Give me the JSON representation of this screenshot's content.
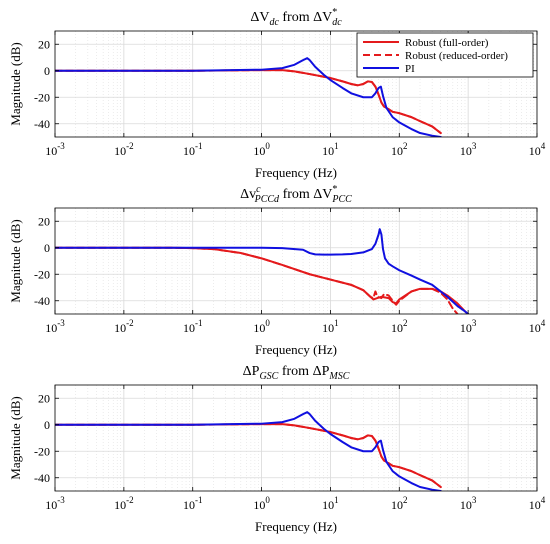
{
  "colors": {
    "robust_full": "#e41a1c",
    "robust_reduced": "#e41a1c",
    "pi": "#1010e0",
    "grid": "#d9d9d9",
    "axis": "#000000"
  },
  "chart_data": [
    {
      "type": "line",
      "title_parts": {
        "a": "ΔV",
        "a_sub": "dc",
        "mid": " from ",
        "b": "ΔV",
        "b_sub": "dc",
        "b_sup": "*"
      },
      "xlabel": "Frequency (Hz)",
      "ylabel": "Magnitude (dB)",
      "xscale": "log",
      "xlim": [
        0.001,
        10000
      ],
      "ylim": [
        -50,
        30
      ],
      "xticks": [
        0.001,
        0.01,
        0.1,
        1,
        10,
        100,
        1000,
        10000
      ],
      "xtick_labels": [
        {
          "base": "10",
          "exp": "-3"
        },
        {
          "base": "10",
          "exp": "-2"
        },
        {
          "base": "10",
          "exp": "-1"
        },
        {
          "base": "10",
          "exp": "0"
        },
        {
          "base": "10",
          "exp": "1"
        },
        {
          "base": "10",
          "exp": "2"
        },
        {
          "base": "10",
          "exp": "3"
        },
        {
          "base": "10",
          "exp": "4"
        }
      ],
      "yticks": [
        -40,
        -20,
        0,
        20
      ],
      "ytick_labels": [
        "-40",
        "-20",
        "0",
        "20"
      ],
      "grid": true,
      "legend": {
        "placement": "top-right",
        "entries": [
          "Robust (full-order)",
          "Robust (reduced-order)",
          "PI"
        ]
      },
      "series": [
        {
          "name": "Robust (full-order)",
          "style": "solid",
          "x": [
            0.001,
            0.1,
            1,
            2,
            3,
            5,
            8,
            10,
            15,
            20,
            25,
            30,
            35,
            40,
            45,
            50,
            55,
            60,
            70,
            80,
            100,
            150,
            200,
            300,
            400
          ],
          "y": [
            0,
            0,
            0.5,
            0.5,
            -0.5,
            -2.5,
            -4.5,
            -5.5,
            -8,
            -10,
            -11,
            -10,
            -8,
            -8.5,
            -12,
            -18,
            -24,
            -27,
            -29,
            -31,
            -32,
            -35,
            -38,
            -42,
            -47
          ]
        },
        {
          "name": "Robust (reduced-order)",
          "style": "dashed",
          "x": [
            0.001,
            0.1,
            1,
            2,
            3,
            5,
            8,
            10,
            15,
            20,
            25,
            30,
            35,
            40,
            45,
            50,
            55,
            60,
            70,
            80,
            100,
            150,
            200,
            300,
            400
          ],
          "y": [
            0,
            0,
            0.5,
            0.5,
            -0.5,
            -2.5,
            -4.5,
            -5.5,
            -8,
            -10,
            -11,
            -10,
            -8,
            -8.5,
            -12,
            -18,
            -24,
            -27,
            -29,
            -31,
            -32,
            -35,
            -38,
            -42,
            -47
          ]
        },
        {
          "name": "PI",
          "style": "solid",
          "x": [
            0.001,
            0.1,
            1,
            2,
            3,
            4,
            4.6,
            5,
            6,
            8,
            10,
            15,
            20,
            30,
            40,
            45,
            50,
            54,
            58,
            65,
            80,
            100,
            150,
            200,
            300,
            400
          ],
          "y": [
            0,
            0,
            0.8,
            2,
            4.5,
            8,
            9.5,
            8,
            3,
            -3,
            -7,
            -13,
            -17,
            -20,
            -20,
            -17,
            -13,
            -12,
            -19,
            -28,
            -35,
            -39,
            -44,
            -47,
            -49,
            -50
          ]
        }
      ]
    },
    {
      "type": "line",
      "title_parts": {
        "a": "Δv",
        "a_sub": "PCCd",
        "a_sup": "c",
        "mid": " from ",
        "b": "ΔV",
        "b_sub": "PCC",
        "b_sup": "*"
      },
      "xlabel": "Frequency (Hz)",
      "ylabel": "Magnitude (dB)",
      "xscale": "log",
      "xlim": [
        0.001,
        10000
      ],
      "ylim": [
        -50,
        30
      ],
      "xticks": [
        0.001,
        0.01,
        0.1,
        1,
        10,
        100,
        1000,
        10000
      ],
      "xtick_labels": [
        {
          "base": "10",
          "exp": "-3"
        },
        {
          "base": "10",
          "exp": "-2"
        },
        {
          "base": "10",
          "exp": "-1"
        },
        {
          "base": "10",
          "exp": "0"
        },
        {
          "base": "10",
          "exp": "1"
        },
        {
          "base": "10",
          "exp": "2"
        },
        {
          "base": "10",
          "exp": "3"
        },
        {
          "base": "10",
          "exp": "4"
        }
      ],
      "yticks": [
        -40,
        -20,
        0,
        20
      ],
      "ytick_labels": [
        "-40",
        "-20",
        "0",
        "20"
      ],
      "grid": true,
      "series": [
        {
          "name": "Robust (full-order)",
          "style": "solid",
          "x": [
            0.001,
            0.05,
            0.1,
            0.2,
            0.5,
            1,
            2,
            5,
            10,
            20,
            30,
            38,
            42,
            48,
            55,
            70,
            80,
            90,
            100,
            150,
            200,
            300,
            400,
            500,
            700,
            900,
            1000
          ],
          "y": [
            0,
            0,
            -0.3,
            -1,
            -4,
            -8,
            -13,
            -20,
            -24,
            -28,
            -32,
            -37,
            -39,
            -38,
            -37,
            -38,
            -41,
            -42,
            -39,
            -33,
            -31,
            -31,
            -33,
            -36,
            -42,
            -48,
            -50
          ]
        },
        {
          "name": "Robust (reduced-order)",
          "style": "dashed",
          "x": [
            0.001,
            0.05,
            0.1,
            0.2,
            0.5,
            1,
            2,
            5,
            10,
            20,
            30,
            38,
            42,
            45,
            48,
            55,
            60,
            70,
            80,
            90,
            100,
            150,
            200,
            300,
            400,
            500,
            600,
            700
          ],
          "y": [
            0,
            0,
            -0.3,
            -1,
            -4,
            -8,
            -13,
            -20,
            -24,
            -28,
            -32,
            -37,
            -38,
            -33,
            -37,
            -38,
            -35,
            -36,
            -40,
            -43,
            -40,
            -33,
            -31,
            -31,
            -34,
            -39,
            -46,
            -50
          ]
        },
        {
          "name": "PI",
          "style": "solid",
          "x": [
            0.001,
            0.5,
            1,
            2,
            4,
            5,
            6,
            8,
            10,
            15,
            20,
            30,
            40,
            45,
            50,
            52,
            55,
            58,
            62,
            70,
            80,
            100,
            150,
            200,
            300,
            400,
            500,
            700,
            900,
            1000
          ],
          "y": [
            0,
            0,
            0,
            -0.3,
            -1.5,
            -4,
            -5,
            -5.2,
            -5.2,
            -5,
            -4.7,
            -3.5,
            -1,
            3,
            10,
            14,
            10,
            -1,
            -8,
            -12,
            -14,
            -17,
            -21,
            -24,
            -28,
            -33,
            -37,
            -44,
            -48,
            -50
          ]
        }
      ]
    },
    {
      "type": "line",
      "title_parts": {
        "a": "ΔP",
        "a_sub": "GSC",
        "mid": " from ",
        "b": "ΔP",
        "b_sub": "MSC"
      },
      "xlabel": "Frequency (Hz)",
      "ylabel": "Magnitude (dB)",
      "xscale": "log",
      "xlim": [
        0.001,
        10000
      ],
      "ylim": [
        -50,
        30
      ],
      "xticks": [
        0.001,
        0.01,
        0.1,
        1,
        10,
        100,
        1000,
        10000
      ],
      "xtick_labels": [
        {
          "base": "10",
          "exp": "-3"
        },
        {
          "base": "10",
          "exp": "-2"
        },
        {
          "base": "10",
          "exp": "-1"
        },
        {
          "base": "10",
          "exp": "0"
        },
        {
          "base": "10",
          "exp": "1"
        },
        {
          "base": "10",
          "exp": "2"
        },
        {
          "base": "10",
          "exp": "3"
        },
        {
          "base": "10",
          "exp": "4"
        }
      ],
      "yticks": [
        -40,
        -20,
        0,
        20
      ],
      "ytick_labels": [
        "-40",
        "-20",
        "0",
        "20"
      ],
      "grid": true,
      "series": [
        {
          "name": "Robust (full-order)",
          "style": "solid",
          "x": [
            0.001,
            0.1,
            1,
            2,
            3,
            5,
            8,
            10,
            15,
            20,
            25,
            30,
            35,
            40,
            45,
            50,
            55,
            60,
            70,
            80,
            100,
            150,
            200,
            300,
            400
          ],
          "y": [
            0,
            0,
            0.5,
            0.5,
            -0.5,
            -2.5,
            -4.5,
            -5.5,
            -8,
            -10,
            -11,
            -10,
            -8,
            -8.5,
            -12,
            -18,
            -24,
            -27,
            -29,
            -31,
            -32,
            -35,
            -38,
            -42,
            -47
          ]
        },
        {
          "name": "Robust (reduced-order)",
          "style": "dashed",
          "x": [
            0.001,
            0.1,
            1,
            2,
            3,
            5,
            8,
            10,
            15,
            20,
            25,
            30,
            35,
            40,
            45,
            50,
            55,
            60,
            70,
            80,
            100,
            150,
            200,
            300,
            400
          ],
          "y": [
            0,
            0,
            0.5,
            0.5,
            -0.5,
            -2.5,
            -4.5,
            -5.5,
            -8,
            -10,
            -11,
            -10,
            -8,
            -8.5,
            -12,
            -18,
            -24,
            -27,
            -29,
            -31,
            -32,
            -35,
            -38,
            -42,
            -47
          ]
        },
        {
          "name": "PI",
          "style": "solid",
          "x": [
            0.001,
            0.1,
            1,
            2,
            3,
            4,
            4.6,
            5,
            6,
            8,
            10,
            15,
            20,
            30,
            40,
            45,
            50,
            54,
            58,
            65,
            80,
            100,
            150,
            200,
            300,
            400
          ],
          "y": [
            0,
            0,
            0.8,
            2,
            4.5,
            8,
            9.5,
            8,
            3,
            -3,
            -7,
            -13,
            -17,
            -20,
            -20,
            -17,
            -13,
            -12,
            -19,
            -28,
            -35,
            -39,
            -44,
            -47,
            -49,
            -50
          ]
        }
      ]
    }
  ]
}
